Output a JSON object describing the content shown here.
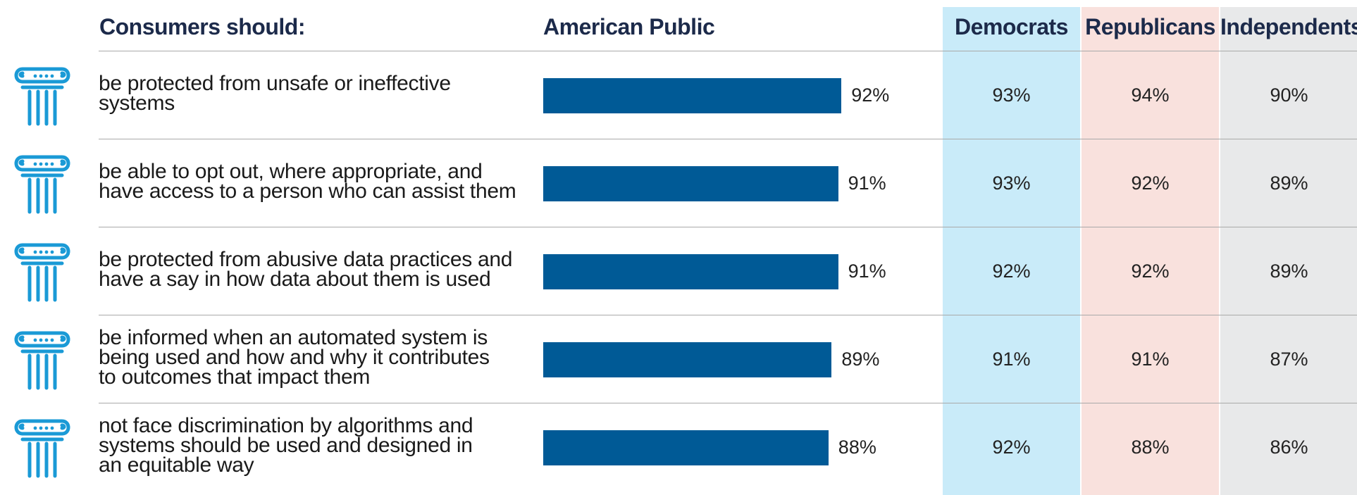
{
  "headers": {
    "statement": "Consumers should:",
    "public": "American Public",
    "democrats": "Democrats",
    "republicans": "Republicans",
    "independents": "Independents"
  },
  "colors": {
    "bar": "#005a96",
    "democrats_bg": "#c9ebf9",
    "republicans_bg": "#f9e1dd",
    "independents_bg": "#e8e9ea",
    "icon": "#1a9ad6"
  },
  "icon_name": "greek-column-icon",
  "rows": [
    {
      "lines": [
        "be protected from unsafe or ineffective",
        "systems"
      ],
      "public": "92%",
      "democrats": "93%",
      "republicans": "94%",
      "independents": "90%"
    },
    {
      "lines": [
        "be able to opt out, where appropriate, and",
        "have access to a person who can assist them"
      ],
      "public": "91%",
      "democrats": "93%",
      "republicans": "92%",
      "independents": "89%"
    },
    {
      "lines": [
        "be protected from abusive data practices and",
        "have a say in how data about them is used"
      ],
      "public": "91%",
      "democrats": "92%",
      "republicans": "92%",
      "independents": "89%"
    },
    {
      "lines": [
        "be informed when an automated system is",
        "being used and how and why it contributes",
        "to outcomes that impact them"
      ],
      "public": "89%",
      "democrats": "91%",
      "republicans": "91%",
      "independents": "87%"
    },
    {
      "lines": [
        "not face discrimination by algorithms and",
        "systems should be used and designed in",
        "an equitable way"
      ],
      "public": "88%",
      "democrats": "92%",
      "republicans": "88%",
      "independents": "86%"
    }
  ],
  "chart_data": {
    "type": "bar",
    "categories": [
      "be protected from unsafe or ineffective systems",
      "be able to opt out, where appropriate, and have access to a person who can assist them",
      "be protected from abusive data practices and have a say in how data about them is used",
      "be informed when an automated system is being used and how and why it contributes to outcomes that impact them",
      "not face discrimination by algorithms and systems should be used and designed in an equitable way"
    ],
    "series": [
      {
        "name": "American Public",
        "values": [
          92,
          91,
          91,
          89,
          88
        ]
      },
      {
        "name": "Democrats",
        "values": [
          93,
          93,
          92,
          91,
          92
        ]
      },
      {
        "name": "Republicans",
        "values": [
          94,
          92,
          92,
          91,
          88
        ]
      },
      {
        "name": "Independents",
        "values": [
          90,
          89,
          89,
          87,
          86
        ]
      }
    ],
    "xlabel": "",
    "ylabel": "",
    "ylim": [
      0,
      100
    ]
  }
}
